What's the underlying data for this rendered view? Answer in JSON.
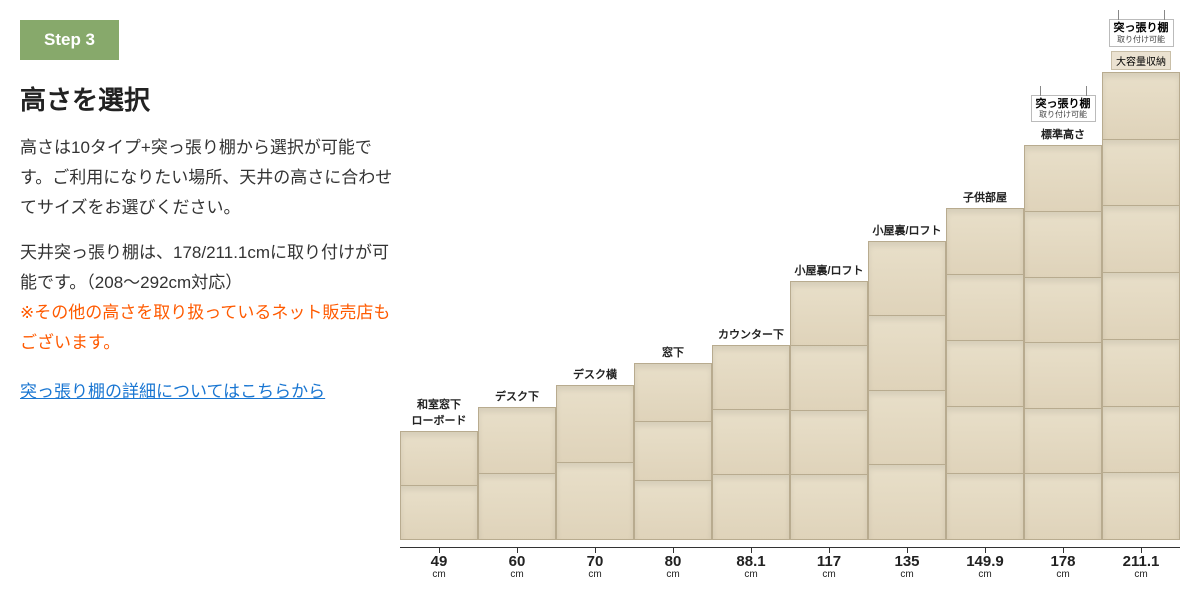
{
  "step": {
    "label": "Step 3"
  },
  "heading": "高さを選択",
  "para1": "高さは10タイプ+突っ張り棚から選択が可能です。ご利用になりたい場所、天井の高さに合わせてサイズをお選びください。",
  "para2a": "天井突っ張り棚は、178/211.1cmに取り付けが可能です。（208〜292cm対応）",
  "para2b": "※その他の高さを取り扱っているネット販売店もございます。",
  "link": "突っ張り棚の詳細についてはこちらから",
  "chart": {
    "unit": "cm",
    "scale_max": 212,
    "extension": {
      "title": "突っ張り棚",
      "sub": "取り付け可能"
    },
    "extra_tag": "大容量収納",
    "shelves": [
      {
        "value": 49,
        "label": "49",
        "segments": 2,
        "top": "和室窓下\nローボード"
      },
      {
        "value": 60,
        "label": "60",
        "segments": 2,
        "top": "デスク下"
      },
      {
        "value": 70,
        "label": "70",
        "segments": 2,
        "top": "デスク横"
      },
      {
        "value": 80,
        "label": "80",
        "segments": 3,
        "top": "窓下"
      },
      {
        "value": 88.1,
        "label": "88.1",
        "segments": 3,
        "top": "カウンター下"
      },
      {
        "value": 117,
        "label": "117",
        "segments": 4,
        "top": "小屋裏/ロフト"
      },
      {
        "value": 135,
        "label": "135",
        "segments": 4,
        "top": "小屋裏/ロフト"
      },
      {
        "value": 149.9,
        "label": "149.9",
        "segments": 5,
        "top": "子供部屋"
      },
      {
        "value": 178,
        "label": "178",
        "segments": 6,
        "top": "標準高さ",
        "extension": true
      },
      {
        "value": 211.1,
        "label": "211.1",
        "segments": 7,
        "top": "",
        "extension": true,
        "extra": true
      }
    ],
    "colors": {
      "badge_bg": "#87a96b",
      "warn": "#ff5a00",
      "link": "#1976d2",
      "shelf_light": "#e8dfc9",
      "shelf_dark": "#d9cdb5",
      "shelf_border": "#b8ab8f"
    }
  }
}
